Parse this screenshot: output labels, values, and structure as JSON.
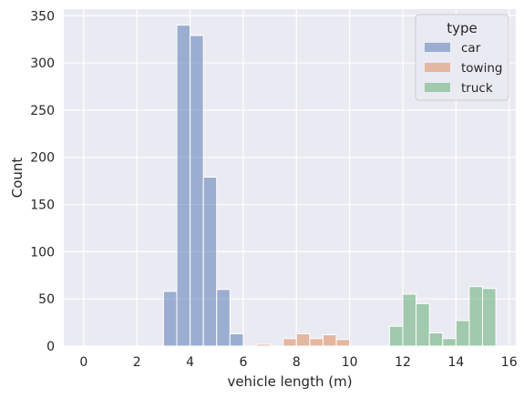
{
  "chart_data": {
    "type": "bar",
    "title": "",
    "xlabel": "vehicle length (m)",
    "ylabel": "Count",
    "xlim": [
      -0.75,
      16.25
    ],
    "ylim": [
      0,
      357
    ],
    "xticks": [
      0,
      2,
      4,
      6,
      8,
      10,
      12,
      14,
      16
    ],
    "yticks": [
      0,
      50,
      100,
      150,
      200,
      250,
      300,
      350
    ],
    "grid": true,
    "background": "#eaeaf2",
    "bin_width": 0.5,
    "legend": {
      "title": "type",
      "placement": "top-right"
    },
    "series": [
      {
        "name": "car",
        "color": "#4c72b0",
        "bins": [
          {
            "x": 3.0,
            "value": 58
          },
          {
            "x": 3.5,
            "value": 340
          },
          {
            "x": 4.0,
            "value": 329
          },
          {
            "x": 4.5,
            "value": 179
          },
          {
            "x": 5.0,
            "value": 60
          },
          {
            "x": 5.5,
            "value": 13
          }
        ]
      },
      {
        "name": "towing",
        "color": "#dd8452",
        "bins": [
          {
            "x": 6.5,
            "value": 2
          },
          {
            "x": 7.5,
            "value": 8
          },
          {
            "x": 8.0,
            "value": 13
          },
          {
            "x": 8.5,
            "value": 8
          },
          {
            "x": 9.0,
            "value": 12
          },
          {
            "x": 9.5,
            "value": 7
          }
        ]
      },
      {
        "name": "truck",
        "color": "#55a868",
        "bins": [
          {
            "x": 11.5,
            "value": 21
          },
          {
            "x": 12.0,
            "value": 55
          },
          {
            "x": 12.5,
            "value": 45
          },
          {
            "x": 13.0,
            "value": 14
          },
          {
            "x": 13.5,
            "value": 8
          },
          {
            "x": 14.0,
            "value": 27
          },
          {
            "x": 14.5,
            "value": 63
          },
          {
            "x": 15.0,
            "value": 61
          }
        ]
      }
    ]
  }
}
